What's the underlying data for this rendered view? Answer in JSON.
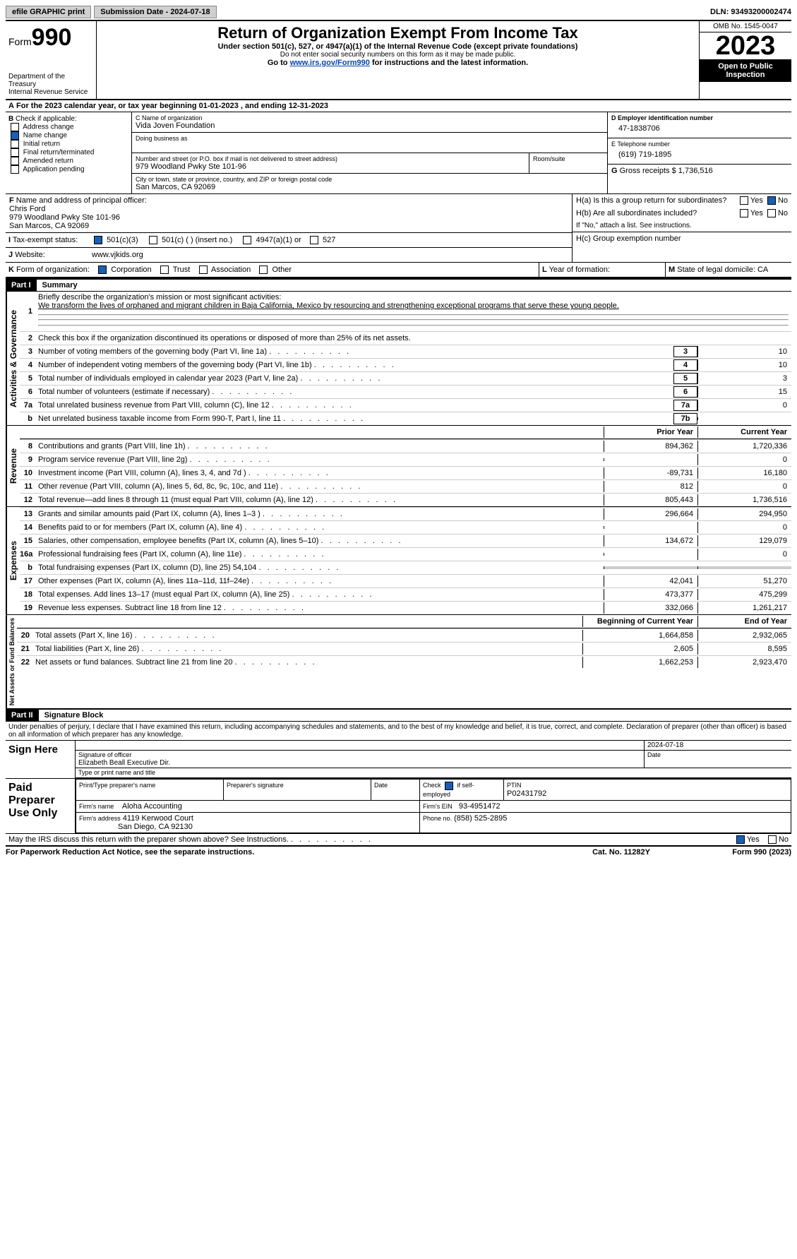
{
  "topbar": {
    "efile": "efile GRAPHIC print",
    "submission": "Submission Date - 2024-07-18",
    "dln": "DLN: 93493200002474"
  },
  "header": {
    "form_word": "Form",
    "form_num": "990",
    "title": "Return of Organization Exempt From Income Tax",
    "sub": "Under section 501(c), 527, or 4947(a)(1) of the Internal Revenue Code (except private foundations)",
    "nosocial": "Do not enter social security numbers on this form as it may be made public.",
    "goto_pre": "Go to ",
    "goto_link": "www.irs.gov/Form990",
    "goto_post": " for instructions and the latest information.",
    "dept": "Department of the Treasury",
    "irs": "Internal Revenue Service",
    "omb": "OMB No. 1545-0047",
    "year": "2023",
    "open": "Open to Public Inspection"
  },
  "a": {
    "label": "A",
    "text": "For the 2023 calendar year, or tax year beginning 01-01-2023   , and ending 12-31-2023"
  },
  "b": {
    "label": "B",
    "check_label": "Check if applicable:",
    "opts": [
      {
        "t": "Address change",
        "c": false
      },
      {
        "t": "Name change",
        "c": true
      },
      {
        "t": "Initial return",
        "c": false
      },
      {
        "t": "Final return/terminated",
        "c": false
      },
      {
        "t": "Amended return",
        "c": false
      },
      {
        "t": "Application pending",
        "c": false
      }
    ]
  },
  "c": {
    "name_lbl": "C Name of organization",
    "name": "Vida Joven Foundation",
    "dba": "Doing business as",
    "street_lbl": "Number and street (or P.O. box if mail is not delivered to street address)",
    "street": "979 Woodland Pwky Ste 101-96",
    "room_lbl": "Room/suite",
    "city_lbl": "City or town, state or province, country, and ZIP or foreign postal code",
    "city": "San Marcos, CA  92069"
  },
  "d": {
    "lbl": "D Employer identification number",
    "val": "47-1838706"
  },
  "e": {
    "lbl": "E Telephone number",
    "val": "(619) 719-1895"
  },
  "g": {
    "lbl": "G",
    "text": "Gross receipts $",
    "val": "1,736,516"
  },
  "f": {
    "lbl": "F",
    "text": "Name and address of principal officer:",
    "name": "Chris Ford",
    "addr": "979 Woodland Pwky Ste 101-96",
    "city": "San Marcos, CA  92069"
  },
  "h": {
    "a": "H(a)  Is this a group return for subordinates?",
    "b": "H(b)  Are all subordinates included?",
    "bnote": "If \"No,\" attach a list. See instructions.",
    "c": "H(c)  Group exemption number"
  },
  "i": {
    "lbl": "I",
    "text": "Tax-exempt status:",
    "o1": "501(c)(3)",
    "o2": "501(c) (  ) (insert no.)",
    "o3": "4947(a)(1) or",
    "o4": "527"
  },
  "j": {
    "lbl": "J",
    "text": "Website:",
    "val": "www.vjkids.org"
  },
  "k": {
    "lbl": "K",
    "text": "Form of organization:",
    "o1": "Corporation",
    "o2": "Trust",
    "o3": "Association",
    "o4": "Other"
  },
  "l": {
    "lbl": "L",
    "text": "Year of formation:"
  },
  "m": {
    "lbl": "M",
    "text": "State of legal domicile:",
    "val": "CA"
  },
  "part1": {
    "num": "Part I",
    "title": "Summary"
  },
  "tabs": {
    "ag": "Activities & Governance",
    "rev": "Revenue",
    "exp": "Expenses",
    "na": "Net Assets or Fund Balances"
  },
  "summary": {
    "l1": "Briefly describe the organization's mission or most significant activities:",
    "l1v": "We transform the lives of orphaned and migrant children in Baja California, Mexico by resourcing and strengthening exceptional programs that serve these young people.",
    "l2": "Check this box      if the organization discontinued its operations or disposed of more than 25% of its net assets.",
    "rows": [
      {
        "n": "3",
        "d": "Number of voting members of the governing body (Part VI, line 1a)",
        "box": "3",
        "v": "10"
      },
      {
        "n": "4",
        "d": "Number of independent voting members of the governing body (Part VI, line 1b)",
        "box": "4",
        "v": "10"
      },
      {
        "n": "5",
        "d": "Total number of individuals employed in calendar year 2023 (Part V, line 2a)",
        "box": "5",
        "v": "3"
      },
      {
        "n": "6",
        "d": "Total number of volunteers (estimate if necessary)",
        "box": "6",
        "v": "15"
      },
      {
        "n": "7a",
        "d": "Total unrelated business revenue from Part VIII, column (C), line 12",
        "box": "7a",
        "v": "0"
      },
      {
        "n": "b",
        "d": "Net unrelated business taxable income from Form 990-T, Part I, line 11",
        "box": "7b",
        "v": ""
      }
    ],
    "py": "Prior Year",
    "cy": "Current Year",
    "rev": [
      {
        "n": "8",
        "d": "Contributions and grants (Part VIII, line 1h)",
        "p": "894,362",
        "c": "1,720,336"
      },
      {
        "n": "9",
        "d": "Program service revenue (Part VIII, line 2g)",
        "p": "",
        "c": "0"
      },
      {
        "n": "10",
        "d": "Investment income (Part VIII, column (A), lines 3, 4, and 7d )",
        "p": "-89,731",
        "c": "16,180"
      },
      {
        "n": "11",
        "d": "Other revenue (Part VIII, column (A), lines 5, 6d, 8c, 9c, 10c, and 11e)",
        "p": "812",
        "c": "0"
      },
      {
        "n": "12",
        "d": "Total revenue—add lines 8 through 11 (must equal Part VIII, column (A), line 12)",
        "p": "805,443",
        "c": "1,736,516"
      }
    ],
    "exp": [
      {
        "n": "13",
        "d": "Grants and similar amounts paid (Part IX, column (A), lines 1–3 )",
        "p": "296,664",
        "c": "294,950"
      },
      {
        "n": "14",
        "d": "Benefits paid to or for members (Part IX, column (A), line 4)",
        "p": "",
        "c": "0"
      },
      {
        "n": "15",
        "d": "Salaries, other compensation, employee benefits (Part IX, column (A), lines 5–10)",
        "p": "134,672",
        "c": "129,079"
      },
      {
        "n": "16a",
        "d": "Professional fundraising fees (Part IX, column (A), line 11e)",
        "p": "",
        "c": "0"
      },
      {
        "n": "b",
        "d": "Total fundraising expenses (Part IX, column (D), line 25) 54,104",
        "p": "shade",
        "c": "shade"
      },
      {
        "n": "17",
        "d": "Other expenses (Part IX, column (A), lines 11a–11d, 11f–24e)",
        "p": "42,041",
        "c": "51,270"
      },
      {
        "n": "18",
        "d": "Total expenses. Add lines 13–17 (must equal Part IX, column (A), line 25)",
        "p": "473,377",
        "c": "475,299"
      },
      {
        "n": "19",
        "d": "Revenue less expenses. Subtract line 18 from line 12",
        "p": "332,066",
        "c": "1,261,217"
      }
    ],
    "bcy": "Beginning of Current Year",
    "eoy": "End of Year",
    "na": [
      {
        "n": "20",
        "d": "Total assets (Part X, line 16)",
        "p": "1,664,858",
        "c": "2,932,065"
      },
      {
        "n": "21",
        "d": "Total liabilities (Part X, line 26)",
        "p": "2,605",
        "c": "8,595"
      },
      {
        "n": "22",
        "d": "Net assets or fund balances. Subtract line 21 from line 20",
        "p": "1,662,253",
        "c": "2,923,470"
      }
    ]
  },
  "part2": {
    "num": "Part II",
    "title": "Signature Block"
  },
  "perjury": "Under penalties of perjury, I declare that I have examined this return, including accompanying schedules and statements, and to the best of my knowledge and belief, it is true, correct, and complete. Declaration of preparer (other than officer) is based on all information of which preparer has any knowledge.",
  "sign": {
    "here": "Sign Here",
    "sig_lbl": "Signature of officer",
    "date_lbl": "Date",
    "date": "2024-07-18",
    "name": "Elizabeth Beall  Executive Dir.",
    "type_lbl": "Type or print name and title"
  },
  "paid": {
    "lbl": "Paid Preparer Use Only",
    "col1": "Print/Type preparer's name",
    "col2": "Preparer's signature",
    "col3": "Date",
    "col4": "Check       if self-employed",
    "col5": "PTIN",
    "ptin": "P02431792",
    "firm_lbl": "Firm's name",
    "firm": "Aloha Accounting",
    "ein_lbl": "Firm's EIN",
    "ein": "93-4951472",
    "addr_lbl": "Firm's address",
    "addr1": "4119 Kerwood Court",
    "addr2": "San Diego, CA  92130",
    "phone_lbl": "Phone no.",
    "phone": "(858) 525-2895"
  },
  "discuss": "May the IRS discuss this return with the preparer shown above? See Instructions.",
  "footer": {
    "left": "For Paperwork Reduction Act Notice, see the separate instructions.",
    "mid": "Cat. No. 11282Y",
    "right": "Form 990 (2023)"
  },
  "yn": {
    "yes": "Yes",
    "no": "No"
  }
}
